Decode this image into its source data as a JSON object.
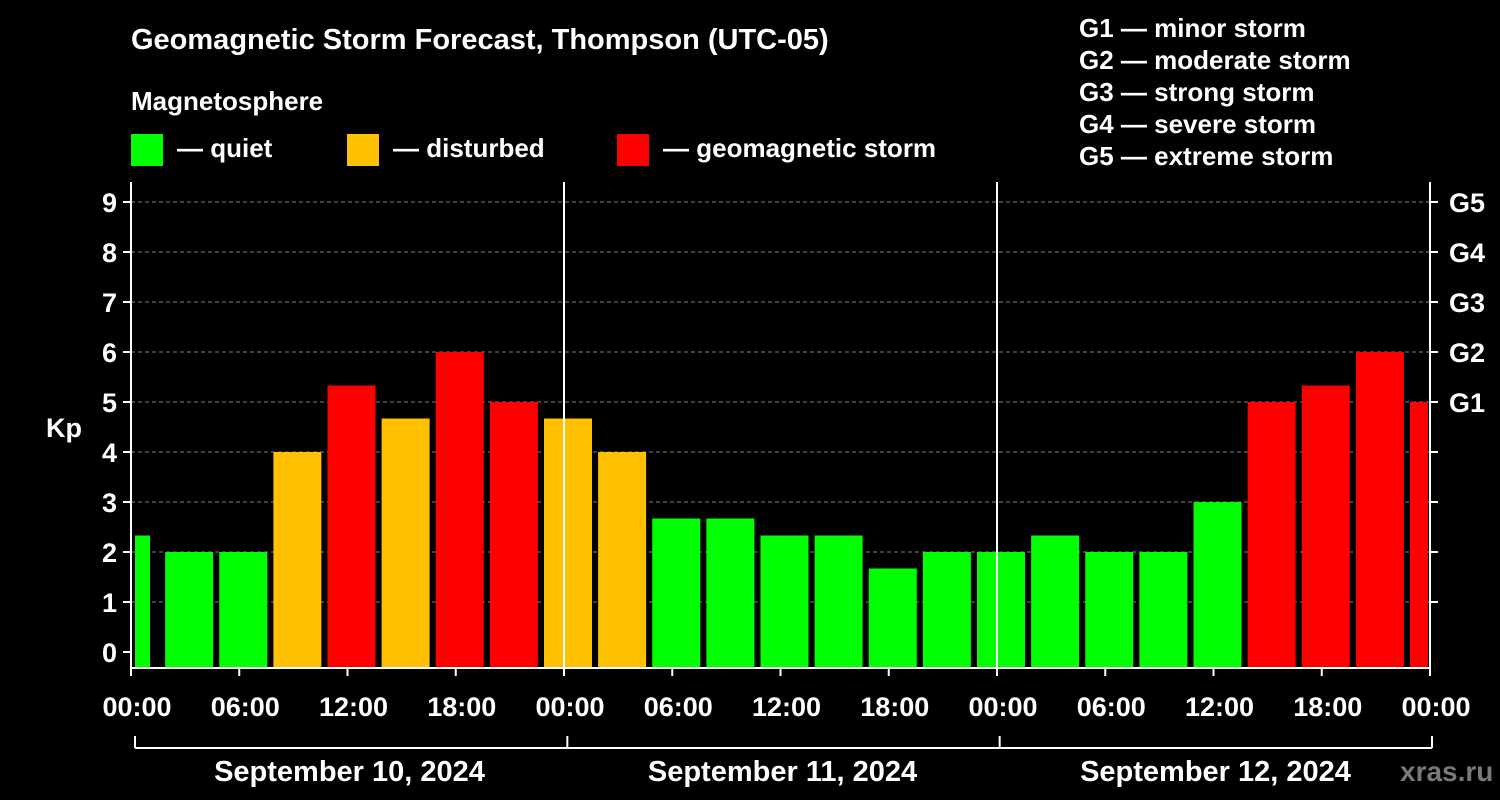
{
  "header": {
    "title": "Geomagnetic Storm Forecast, Thompson (UTC-05)",
    "subtitle": "Magnetosphere"
  },
  "legend": {
    "items": [
      {
        "label": "— quiet",
        "color": "#00ff00"
      },
      {
        "label": "— disturbed",
        "color": "#ffc000"
      },
      {
        "label": "— geomagnetic storm",
        "color": "#ff0000"
      }
    ]
  },
  "scale_legend": [
    "G1 — minor storm",
    "G2 — moderate storm",
    "G3 — strong storm",
    "G4 — severe storm",
    "G5 — extreme storm"
  ],
  "watermark": "xras.ru",
  "chart_data": {
    "type": "bar",
    "ylabel": "Kp",
    "ylim": [
      0,
      9
    ],
    "yticks": [
      "0",
      "1",
      "2",
      "3",
      "4",
      "5",
      "6",
      "7",
      "8",
      "9"
    ],
    "right_axis": [
      {
        "value": 5,
        "label": "G1"
      },
      {
        "value": 6,
        "label": "G2"
      },
      {
        "value": 7,
        "label": "G3"
      },
      {
        "value": 8,
        "label": "G4"
      },
      {
        "value": 9,
        "label": "G5"
      }
    ],
    "grid": "horizontal dashed",
    "xticks": [
      "00:00",
      "06:00",
      "12:00",
      "18:00",
      "00:00",
      "06:00",
      "12:00",
      "18:00",
      "00:00",
      "06:00",
      "12:00",
      "18:00",
      "00:00"
    ],
    "dates": [
      "September 10, 2024",
      "September 11, 2024",
      "September 12, 2024"
    ],
    "colors": {
      "quiet": "#00ff00",
      "disturbed": "#ffc000",
      "storm": "#ff0000"
    },
    "bars": [
      {
        "time": "00:00",
        "kp": 2.33,
        "level": "quiet"
      },
      {
        "time": "03:00",
        "kp": 2.0,
        "level": "quiet"
      },
      {
        "time": "06:00",
        "kp": 2.0,
        "level": "quiet"
      },
      {
        "time": "09:00",
        "kp": 4.0,
        "level": "disturbed"
      },
      {
        "time": "12:00",
        "kp": 5.33,
        "level": "storm"
      },
      {
        "time": "15:00",
        "kp": 4.67,
        "level": "disturbed"
      },
      {
        "time": "18:00",
        "kp": 6.0,
        "level": "storm"
      },
      {
        "time": "21:00",
        "kp": 5.0,
        "level": "storm"
      },
      {
        "time": "00:00",
        "kp": 4.67,
        "level": "disturbed"
      },
      {
        "time": "03:00",
        "kp": 4.0,
        "level": "disturbed"
      },
      {
        "time": "06:00",
        "kp": 2.67,
        "level": "quiet"
      },
      {
        "time": "09:00",
        "kp": 2.67,
        "level": "quiet"
      },
      {
        "time": "12:00",
        "kp": 2.33,
        "level": "quiet"
      },
      {
        "time": "15:00",
        "kp": 2.33,
        "level": "quiet"
      },
      {
        "time": "18:00",
        "kp": 1.67,
        "level": "quiet"
      },
      {
        "time": "21:00",
        "kp": 2.0,
        "level": "quiet"
      },
      {
        "time": "00:00",
        "kp": 2.0,
        "level": "quiet"
      },
      {
        "time": "03:00",
        "kp": 2.33,
        "level": "quiet"
      },
      {
        "time": "06:00",
        "kp": 2.0,
        "level": "quiet"
      },
      {
        "time": "09:00",
        "kp": 2.0,
        "level": "quiet"
      },
      {
        "time": "12:00",
        "kp": 3.0,
        "level": "quiet"
      },
      {
        "time": "15:00",
        "kp": 5.0,
        "level": "storm"
      },
      {
        "time": "18:00",
        "kp": 5.33,
        "level": "storm"
      },
      {
        "time": "21:00",
        "kp": 6.0,
        "level": "storm"
      },
      {
        "time": "00:00",
        "kp": 5.0,
        "level": "storm"
      }
    ]
  }
}
